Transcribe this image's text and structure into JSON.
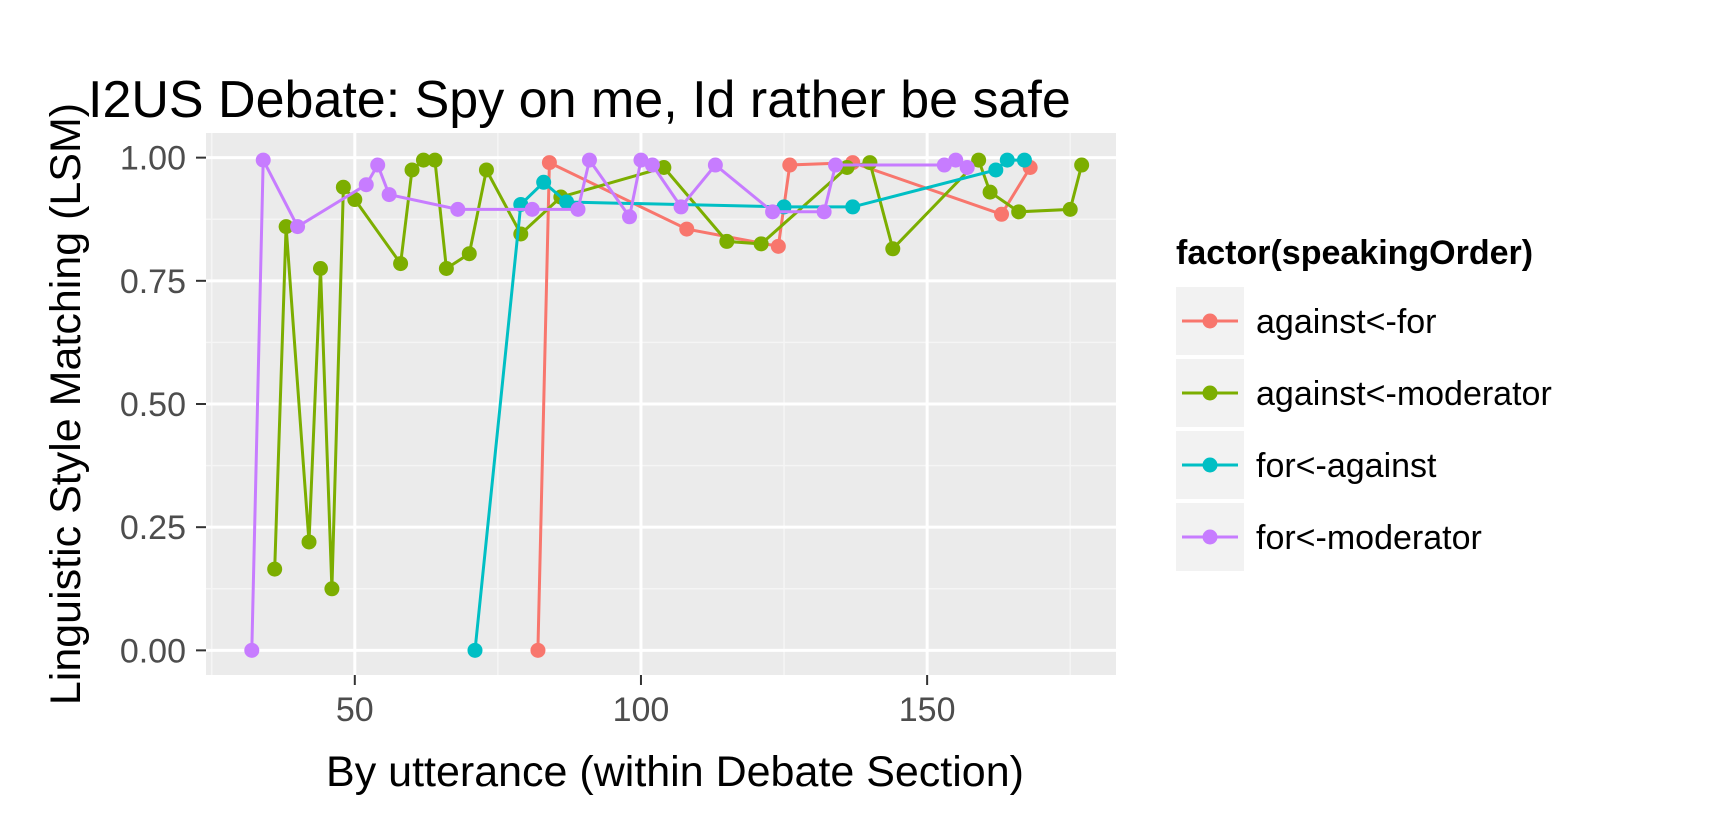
{
  "chart_data": {
    "type": "line",
    "title": "I2US Debate: Spy on me, Id rather be safe",
    "xlabel": "By utterance (within Debate Section)",
    "ylabel": "Linguistic Style Matching (LSM)",
    "xlim": [
      24,
      183
    ],
    "ylim": [
      -0.05,
      1.05
    ],
    "x_ticks": [
      50,
      100,
      150
    ],
    "y_ticks": [
      0.0,
      0.25,
      0.5,
      0.75,
      1.0
    ],
    "x_tick_labels": [
      "50",
      "100",
      "150"
    ],
    "y_tick_labels": [
      "0.00",
      "0.25",
      "0.50",
      "0.75",
      "1.00"
    ],
    "grid": true,
    "legend": {
      "title": "factor(speakingOrder)",
      "position": "right"
    },
    "markers": true,
    "series": [
      {
        "name": "against<-for",
        "color": "#F8766D",
        "points": [
          [
            82,
            0.0
          ],
          [
            84,
            0.99
          ],
          [
            108,
            0.855
          ],
          [
            124,
            0.82
          ],
          [
            126,
            0.985
          ],
          [
            137,
            0.99
          ],
          [
            163,
            0.885
          ],
          [
            168,
            0.98
          ]
        ]
      },
      {
        "name": "against<-moderator",
        "color": "#7CAE00",
        "points": [
          [
            36,
            0.165
          ],
          [
            38,
            0.86
          ],
          [
            42,
            0.22
          ],
          [
            44,
            0.775
          ],
          [
            46,
            0.125
          ],
          [
            48,
            0.94
          ],
          [
            50,
            0.915
          ],
          [
            58,
            0.785
          ],
          [
            60,
            0.975
          ],
          [
            62,
            0.995
          ],
          [
            64,
            0.995
          ],
          [
            66,
            0.775
          ],
          [
            70,
            0.805
          ],
          [
            73,
            0.975
          ],
          [
            79,
            0.845
          ],
          [
            86,
            0.92
          ],
          [
            104,
            0.98
          ],
          [
            115,
            0.83
          ],
          [
            121,
            0.825
          ],
          [
            136,
            0.98
          ],
          [
            140,
            0.99
          ],
          [
            144,
            0.815
          ],
          [
            159,
            0.995
          ],
          [
            161,
            0.93
          ],
          [
            166,
            0.89
          ],
          [
            175,
            0.895
          ],
          [
            177,
            0.985
          ]
        ]
      },
      {
        "name": "for<-against",
        "color": "#00BFC4",
        "points": [
          [
            71,
            0.0
          ],
          [
            79,
            0.905
          ],
          [
            83,
            0.95
          ],
          [
            87,
            0.91
          ],
          [
            125,
            0.9
          ],
          [
            137,
            0.9
          ],
          [
            162,
            0.975
          ],
          [
            164,
            0.995
          ],
          [
            167,
            0.995
          ]
        ]
      },
      {
        "name": "for<-moderator",
        "color": "#C77CFF",
        "points": [
          [
            32,
            0.0
          ],
          [
            34,
            0.995
          ],
          [
            40,
            0.86
          ],
          [
            52,
            0.945
          ],
          [
            54,
            0.985
          ],
          [
            56,
            0.925
          ],
          [
            68,
            0.895
          ],
          [
            81,
            0.895
          ],
          [
            89,
            0.895
          ],
          [
            91,
            0.995
          ],
          [
            98,
            0.88
          ],
          [
            100,
            0.995
          ],
          [
            102,
            0.985
          ],
          [
            107,
            0.9
          ],
          [
            113,
            0.985
          ],
          [
            123,
            0.89
          ],
          [
            132,
            0.89
          ],
          [
            134,
            0.985
          ],
          [
            153,
            0.985
          ],
          [
            155,
            0.995
          ],
          [
            157,
            0.98
          ]
        ]
      }
    ]
  }
}
